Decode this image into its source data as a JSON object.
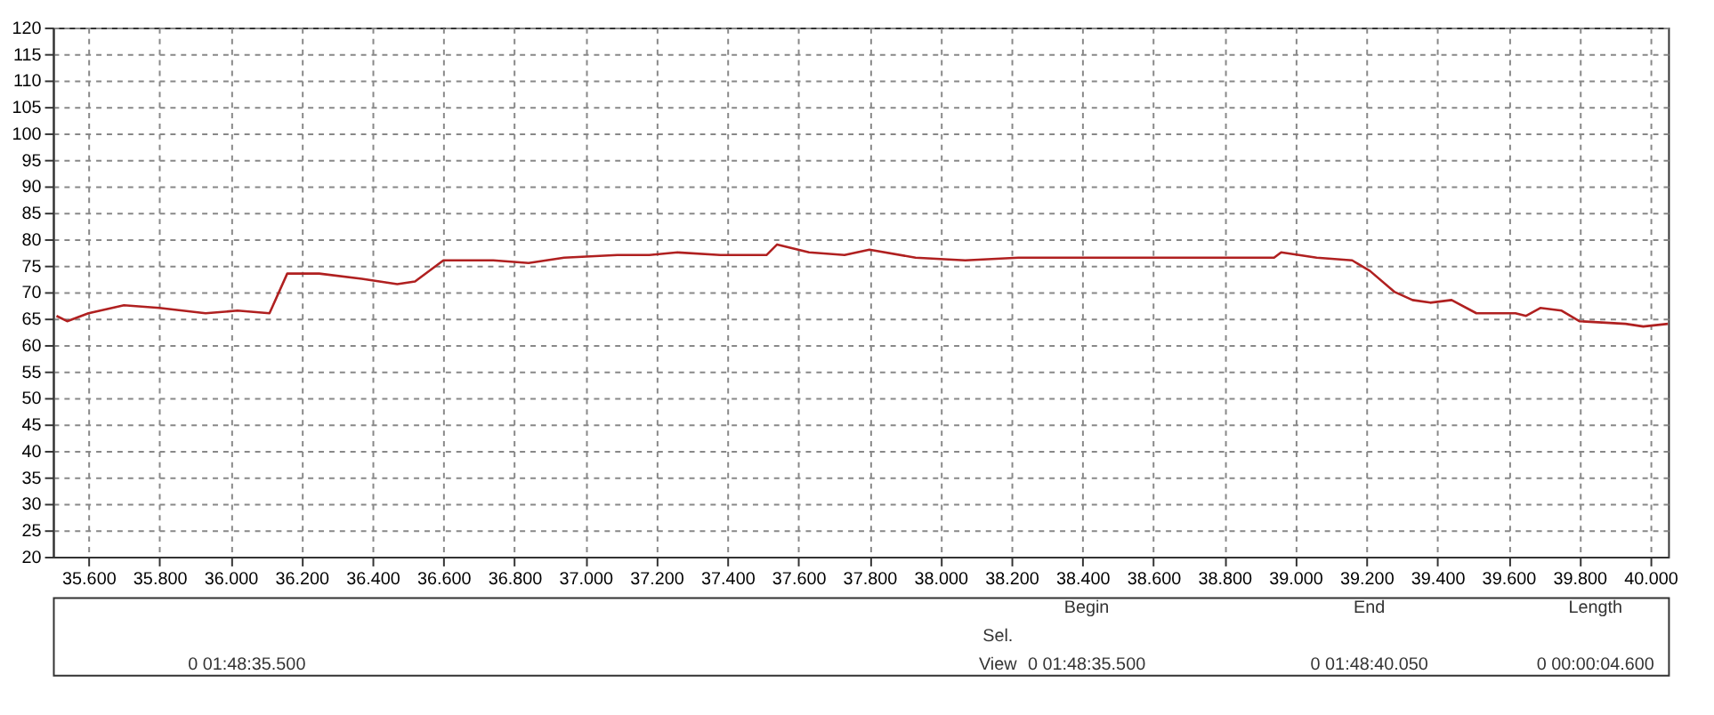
{
  "chart_data": {
    "type": "line",
    "x": [
      35510,
      35540,
      35600,
      35700,
      35800,
      35930,
      36020,
      36110,
      36160,
      36250,
      36370,
      36470,
      36520,
      36600,
      36740,
      36840,
      36940,
      37090,
      37180,
      37260,
      37380,
      37510,
      37540,
      37630,
      37730,
      37800,
      37930,
      38070,
      38220,
      38330,
      38420,
      38670,
      38820,
      38940,
      38960,
      39060,
      39160,
      39210,
      39280,
      39330,
      39380,
      39440,
      39510,
      39560,
      39620,
      39650,
      39690,
      39750,
      39800,
      39930,
      39980,
      40050
    ],
    "series": [
      {
        "color": "#b02020",
        "values": [
          65.5,
          64.5,
          66,
          67.5,
          67,
          66,
          66.5,
          66,
          73.5,
          73.5,
          72.5,
          71.5,
          72,
          76,
          76,
          75.5,
          76.5,
          77,
          77,
          77.5,
          77,
          77,
          79,
          77.5,
          77,
          78,
          76.5,
          76,
          76.5,
          76.5,
          76.5,
          76.5,
          76.5,
          76.5,
          77.5,
          76.5,
          76,
          74,
          70,
          68.5,
          68,
          68.5,
          66,
          66,
          66,
          65.5,
          67,
          66.5,
          64.5,
          64,
          63.5,
          64
        ]
      }
    ],
    "xlim": [
      35500,
      40050
    ],
    "xticks": [
      {
        "value": 35600,
        "label": "35.600"
      },
      {
        "value": 35800,
        "label": "35.800"
      },
      {
        "value": 36000,
        "label": "36.000"
      },
      {
        "value": 36200,
        "label": "36.200"
      },
      {
        "value": 36400,
        "label": "36.400"
      },
      {
        "value": 36600,
        "label": "36.600"
      },
      {
        "value": 36800,
        "label": "36.800"
      },
      {
        "value": 37000,
        "label": "37.000"
      },
      {
        "value": 37200,
        "label": "37.200"
      },
      {
        "value": 37400,
        "label": "37.400"
      },
      {
        "value": 37600,
        "label": "37.600"
      },
      {
        "value": 37800,
        "label": "37.800"
      },
      {
        "value": 38000,
        "label": "38.000"
      },
      {
        "value": 38200,
        "label": "38.200"
      },
      {
        "value": 38400,
        "label": "38.400"
      },
      {
        "value": 38600,
        "label": "38.600"
      },
      {
        "value": 38800,
        "label": "38.800"
      },
      {
        "value": 39000,
        "label": "39.000"
      },
      {
        "value": 39200,
        "label": "39.200"
      },
      {
        "value": 39400,
        "label": "39.400"
      },
      {
        "value": 39600,
        "label": "39.600"
      },
      {
        "value": 39800,
        "label": "39.800"
      },
      {
        "value": 40000,
        "label": "40.000"
      }
    ],
    "ylim": [
      20,
      120
    ],
    "yticks": [
      20,
      25,
      30,
      35,
      40,
      45,
      50,
      55,
      60,
      65,
      70,
      75,
      80,
      85,
      90,
      95,
      100,
      105,
      110,
      115,
      120
    ],
    "grid": true,
    "line_style": "solid",
    "marker": "none",
    "legend": false,
    "annotations": [
      "Begin",
      "End",
      "Length",
      "Sel.",
      "View",
      "0 01:48:35.500",
      "0 01:48:35.500",
      "0 01:48:40.050",
      "0 00:00:04.600"
    ]
  }
}
